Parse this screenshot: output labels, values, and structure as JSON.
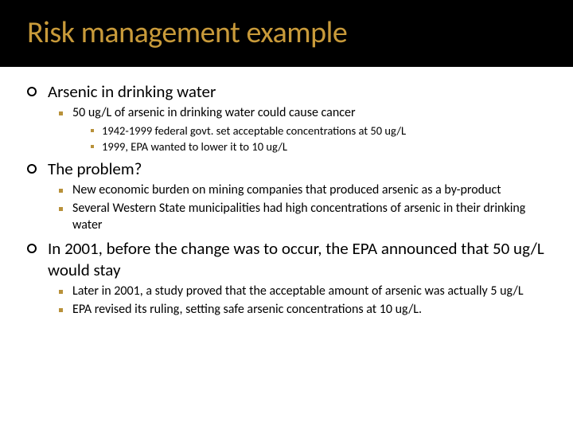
{
  "colors": {
    "title_bg": "#000000",
    "title_fg": "#c89a3a",
    "body_bg": "#ffffff",
    "text": "#000000",
    "square_bullet": "#b8913a",
    "circle_bullet_border": "#000000"
  },
  "typography": {
    "title_fontsize": 38,
    "l1_fontsize": 21,
    "l2_fontsize": 16,
    "l3_fontsize": 14.5,
    "font_family": "Calibri"
  },
  "title": "Risk management example",
  "items": {
    "a": "Arsenic in drinking water",
    "a1": "50 ug/L of arsenic in drinking water could cause cancer",
    "a1a": "1942-1999 federal govt. set acceptable concentrations at 50 ug/L",
    "a1b": "1999, EPA wanted to lower it to 10 ug/L",
    "b": "The problem?",
    "b1": "New economic burden on mining companies that produced arsenic as a by-product",
    "b2": "Several Western State municipalities had high concentrations of arsenic in their drinking water",
    "c": "In 2001, before the change was to occur, the EPA announced that 50 ug/L would stay",
    "c1": "Later in 2001, a study proved that the acceptable amount of arsenic was actually 5 ug/L",
    "c2": "EPA revised its ruling, setting safe arsenic concentrations at 10 ug/L."
  }
}
